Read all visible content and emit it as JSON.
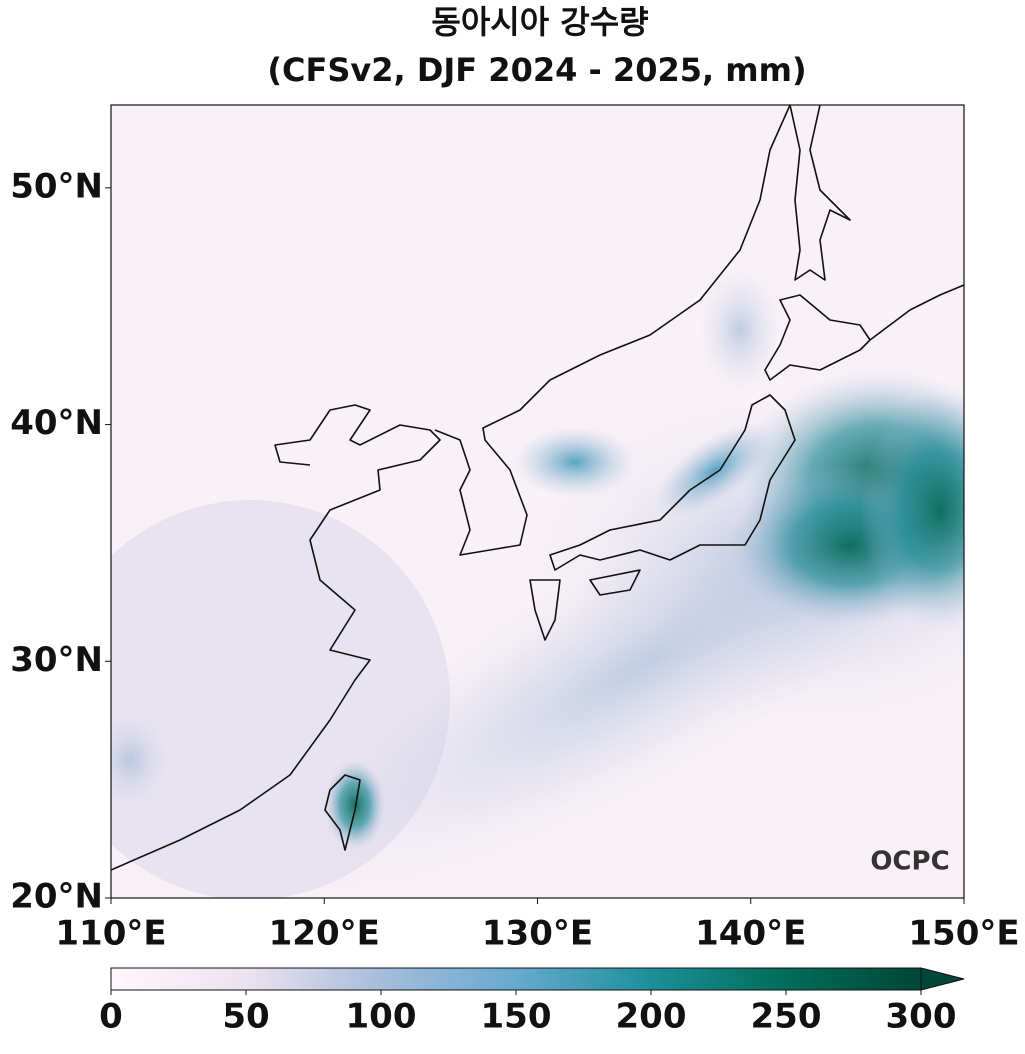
{
  "chart_data": {
    "type": "map",
    "title": "동아시아 강수량",
    "subtitle": "(CFSv2, DJF 2024 - 2025, mm)",
    "xlim": [
      110,
      150
    ],
    "xticks": [
      {
        "value": 110,
        "label": "110°E"
      },
      {
        "value": 120,
        "label": "120°E"
      },
      {
        "value": 130,
        "label": "130°E"
      },
      {
        "value": 140,
        "label": "140°E"
      },
      {
        "value": 150,
        "label": "150°E"
      }
    ],
    "ylim": [
      20,
      53.5
    ],
    "yticks": [
      {
        "value": 20,
        "label": "20°N"
      },
      {
        "value": 30,
        "label": "30°N"
      },
      {
        "value": 40,
        "label": "40°N"
      },
      {
        "value": 50,
        "label": "50°N"
      }
    ],
    "colorbar": {
      "lim": [
        0,
        300
      ],
      "ticks": [
        0,
        50,
        100,
        150,
        200,
        250,
        300
      ],
      "colors": [
        "#fff7fb",
        "#ece2f0",
        "#a6bddb",
        "#67a9cf",
        "#1c9099",
        "#016c59",
        "#014636"
      ]
    },
    "watermark": "OCPC"
  }
}
